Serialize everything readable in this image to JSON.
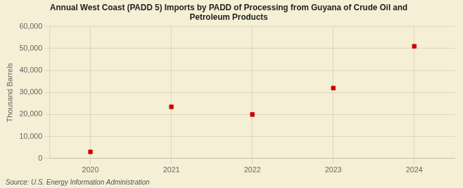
{
  "chart_data": {
    "type": "scatter",
    "title": "Annual West Coast (PADD 5) Imports by PADD of Processing from Guyana of Crude Oil and\nPetroleum Products",
    "ylabel": "Thousand Barrels",
    "source": "Source: U.S. Energy Information Administration",
    "x": [
      2020,
      2021,
      2022,
      2023,
      2024
    ],
    "values": [
      3000,
      23500,
      20000,
      32000,
      51000
    ],
    "color": "#cc0000",
    "marker": "square",
    "xlim": [
      2019.5,
      2024.5
    ],
    "xticks": [
      2020,
      2021,
      2022,
      2023,
      2024
    ],
    "ylim": [
      0,
      60000
    ],
    "yticks": [
      0,
      {
        "value": 10000,
        "label": "10,000"
      },
      {
        "value": 20000,
        "label": "20,000"
      },
      {
        "value": 30000,
        "label": "30,000"
      },
      {
        "value": 40000,
        "label": "40,000"
      },
      {
        "value": 50000,
        "label": "50,000"
      },
      {
        "value": 60000,
        "label": "60,000"
      }
    ],
    "grid": true
  }
}
